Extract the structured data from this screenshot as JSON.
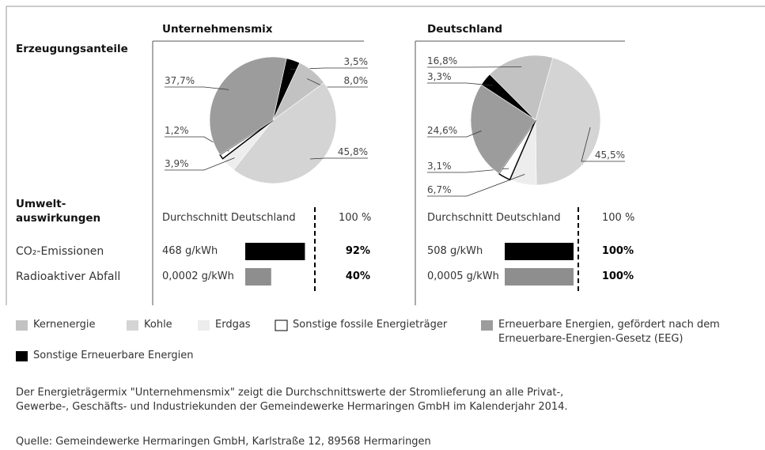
{
  "row_labels": {
    "shares": "Erzeugungsanteile",
    "impact": "Umwelt-auswirkungen",
    "co2": "CO₂-Emissionen",
    "waste": "Radioaktiver Abfall"
  },
  "average_label": "Durchschnitt Deutschland",
  "legend": [
    {
      "name": "Kernenergie",
      "color": "#c2c2c2"
    },
    {
      "name": "Kohle",
      "color": "#d4d4d4"
    },
    {
      "name": "Erdgas",
      "color": "#ededed"
    },
    {
      "name": "Sonstige fossile Energieträger",
      "color": "#ffffff"
    },
    {
      "name": "Erneuerbare Energien, gefördert nach dem Erneuerbare-Energien-Gesetz (EEG)",
      "color": "#9c9c9c"
    },
    {
      "name": "Sonstige Erneuerbare Energien",
      "color": "#000000"
    }
  ],
  "chart_data": [
    {
      "type": "pie",
      "title": "Unternehmensmix",
      "values": [
        8.0,
        45.8,
        3.9,
        1.2,
        37.7,
        3.5
      ],
      "value_labels": [
        "8,0%",
        "45,8%",
        "3,9%",
        "1,2%",
        "37,7%",
        "3,5%"
      ]
    },
    {
      "type": "pie",
      "title": "Deutschland",
      "values": [
        16.8,
        45.5,
        6.7,
        3.1,
        24.6,
        3.3
      ],
      "value_labels": [
        "16,8%",
        "45,5%",
        "6,7%",
        "3,1%",
        "24,6%",
        "3,3%"
      ]
    },
    {
      "type": "bar",
      "amounts": [
        "468 g/kWh",
        "0,0002 g/kWh"
      ],
      "values": [
        92,
        40
      ],
      "value_labels": [
        "92%",
        "40%"
      ],
      "colors": [
        "#000000",
        "#8e8e8e"
      ],
      "xlim": [
        0,
        100
      ],
      "reference": 100,
      "reference_label": "100 %"
    },
    {
      "type": "bar",
      "amounts": [
        "508 g/kWh",
        "0,0005 g/kWh"
      ],
      "values": [
        100,
        100
      ],
      "value_labels": [
        "100%",
        "100%"
      ],
      "colors": [
        "#000000",
        "#8e8e8e"
      ],
      "xlim": [
        0,
        100
      ],
      "reference": 100,
      "reference_label": "100 %"
    }
  ],
  "note": "Der Energieträgermix \"Unternehmensmix\" zeigt die Durchschnittswerte der Stromlieferung an alle Privat-, Gewerbe-, Geschäfts- und Industriekunden der Gemeindewerke Hermaringen GmbH im Kalenderjahr 2014.",
  "source": "Quelle: Gemeindewerke Hermaringen GmbH, Karlstraße 12, 89568 Hermaringen"
}
